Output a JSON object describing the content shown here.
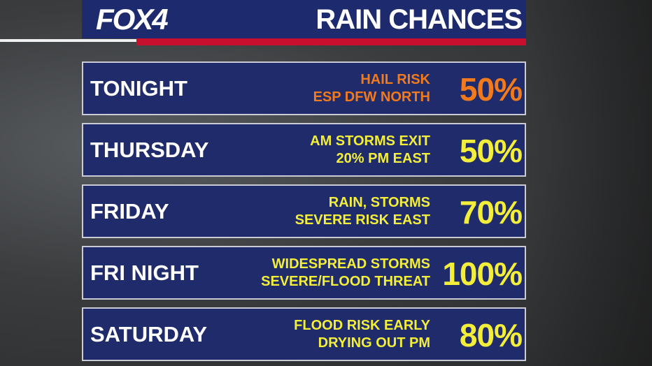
{
  "header": {
    "logo": "FOX4",
    "title": "RAIN CHANCES"
  },
  "rows": [
    {
      "day": "TONIGHT",
      "notes": [
        "HAIL RISK",
        "ESP DFW NORTH"
      ],
      "chance": "50%",
      "color": "#f07a1c"
    },
    {
      "day": "THURSDAY",
      "notes": [
        "AM STORMS EXIT",
        "20% PM EAST"
      ],
      "chance": "50%",
      "color": "#f2ee3a"
    },
    {
      "day": "FRIDAY",
      "notes": [
        "RAIN, STORMS",
        "SEVERE RISK EAST"
      ],
      "chance": "70%",
      "color": "#f2ee3a"
    },
    {
      "day": "FRI NIGHT",
      "notes": [
        "WIDESPREAD STORMS",
        "SEVERE/FLOOD THREAT"
      ],
      "chance": "100%",
      "color": "#f2ee3a"
    },
    {
      "day": "SATURDAY",
      "notes": [
        "FLOOD RISK EARLY",
        "DRYING OUT PM"
      ],
      "chance": "80%",
      "color": "#f2ee3a"
    }
  ]
}
